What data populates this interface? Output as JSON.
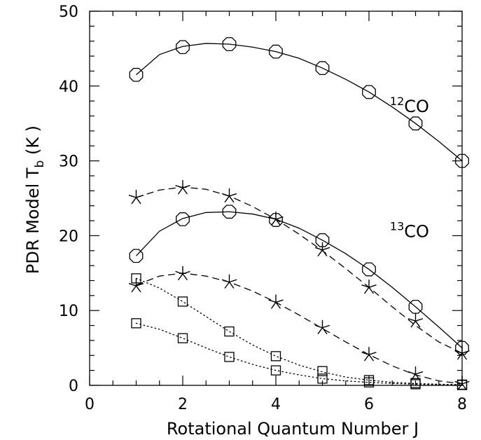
{
  "chart_data": {
    "type": "line",
    "title": "",
    "xlabel": "Rotational Quantum Number J",
    "ylabel": {
      "main": "PDR Model T",
      "sub": "b",
      "unit": " (K )"
    },
    "xlim": [
      0,
      8
    ],
    "ylim": [
      0,
      50
    ],
    "x_ticks": [
      "0",
      "2",
      "4",
      "6",
      "8"
    ],
    "y_ticks": [
      "0",
      "10",
      "20",
      "30",
      "40",
      "50"
    ],
    "grid": false,
    "series": [
      {
        "marker": "octagon",
        "line": "solid",
        "x": [
          1,
          2,
          3,
          4,
          5,
          6,
          7,
          8
        ],
        "values": [
          41.5,
          45.2,
          45.6,
          44.6,
          42.4,
          39.2,
          35.0,
          30.0
        ],
        "curve": [
          [
            1,
            41.5
          ],
          [
            1.5,
            44.2
          ],
          [
            2,
            45.3
          ],
          [
            2.5,
            45.7
          ],
          [
            3,
            45.6
          ],
          [
            3.5,
            45.2
          ],
          [
            4,
            44.6
          ],
          [
            4.5,
            43.7
          ],
          [
            5,
            42.4
          ],
          [
            5.5,
            40.9
          ],
          [
            6,
            39.2
          ],
          [
            6.5,
            37.2
          ],
          [
            7,
            35.0
          ],
          [
            7.5,
            32.6
          ],
          [
            8,
            30.0
          ]
        ]
      },
      {
        "marker": "asterisk",
        "line": "dashed",
        "x": [
          1,
          2,
          3,
          4,
          5,
          6,
          7,
          8
        ],
        "values": [
          25.1,
          26.4,
          25.3,
          22.2,
          18.1,
          13.1,
          8.6,
          4.3
        ],
        "curve": [
          [
            1,
            25.1
          ],
          [
            1.5,
            26.1
          ],
          [
            2,
            26.5
          ],
          [
            2.5,
            26.2
          ],
          [
            3,
            25.3
          ],
          [
            3.5,
            23.9
          ],
          [
            4,
            22.2
          ],
          [
            4.5,
            20.2
          ],
          [
            5,
            18.0
          ],
          [
            5.5,
            15.6
          ],
          [
            6,
            13.1
          ],
          [
            6.5,
            10.5
          ],
          [
            7,
            8.0
          ],
          [
            7.5,
            5.8
          ],
          [
            8,
            4.3
          ]
        ]
      },
      {
        "marker": "octagon",
        "line": "solid",
        "x": [
          1,
          2,
          3,
          4,
          5,
          6,
          7,
          8
        ],
        "values": [
          17.3,
          22.2,
          23.2,
          22.1,
          19.4,
          15.5,
          10.5,
          5.0
        ],
        "curve": [
          [
            1,
            17.3
          ],
          [
            1.5,
            20.6
          ],
          [
            2,
            22.3
          ],
          [
            2.5,
            23.1
          ],
          [
            3,
            23.2
          ],
          [
            3.5,
            22.9
          ],
          [
            4,
            22.2
          ],
          [
            4.5,
            21.0
          ],
          [
            5,
            19.4
          ],
          [
            5.5,
            17.6
          ],
          [
            6,
            15.5
          ],
          [
            6.5,
            13.1
          ],
          [
            7,
            10.5
          ],
          [
            7.5,
            7.8
          ],
          [
            8,
            5.0
          ]
        ]
      },
      {
        "marker": "asterisk",
        "line": "dashed",
        "x": [
          1,
          2,
          3,
          4,
          5,
          6,
          7,
          8
        ],
        "values": [
          13.3,
          14.9,
          13.8,
          11.1,
          7.7,
          4.1,
          1.5,
          0.2
        ],
        "curve": [
          [
            1,
            13.4
          ],
          [
            1.5,
            14.6
          ],
          [
            2,
            15.0
          ],
          [
            2.5,
            14.6
          ],
          [
            3,
            13.8
          ],
          [
            3.5,
            12.6
          ],
          [
            4,
            11.1
          ],
          [
            4.5,
            9.4
          ],
          [
            5,
            7.6
          ],
          [
            5.5,
            5.8
          ],
          [
            6,
            4.1
          ],
          [
            6.5,
            2.6
          ],
          [
            7,
            1.4
          ],
          [
            7.5,
            0.6
          ],
          [
            8,
            0.2
          ]
        ]
      },
      {
        "marker": "square",
        "line": "dotted",
        "x": [
          1,
          2,
          3,
          4,
          5,
          6,
          7,
          8
        ],
        "values": [
          14.3,
          11.2,
          7.2,
          3.9,
          1.9,
          0.7,
          0.3,
          0.1
        ],
        "curve": [
          [
            1,
            14.3
          ],
          [
            1.5,
            13.0
          ],
          [
            2,
            11.2
          ],
          [
            2.5,
            9.2
          ],
          [
            3,
            7.2
          ],
          [
            3.5,
            5.4
          ],
          [
            4,
            3.9
          ],
          [
            4.5,
            2.7
          ],
          [
            5,
            1.8
          ],
          [
            5.5,
            1.1
          ],
          [
            6,
            0.7
          ],
          [
            6.5,
            0.4
          ],
          [
            7,
            0.25
          ],
          [
            7.5,
            0.15
          ],
          [
            8,
            0.1
          ]
        ]
      },
      {
        "marker": "square",
        "line": "dotted",
        "x": [
          1,
          2,
          3,
          4,
          5,
          6,
          7,
          8
        ],
        "values": [
          8.3,
          6.3,
          3.8,
          2.0,
          0.9,
          0.4,
          0.15,
          0.05
        ],
        "curve": [
          [
            1,
            8.3
          ],
          [
            1.5,
            7.5
          ],
          [
            2,
            6.3
          ],
          [
            2.5,
            5.0
          ],
          [
            3,
            3.8
          ],
          [
            3.5,
            2.8
          ],
          [
            4,
            2.0
          ],
          [
            4.5,
            1.4
          ],
          [
            5,
            0.9
          ],
          [
            5.5,
            0.6
          ],
          [
            6,
            0.4
          ],
          [
            6.5,
            0.25
          ],
          [
            7,
            0.15
          ],
          [
            7.5,
            0.08
          ],
          [
            8,
            0.05
          ]
        ]
      }
    ],
    "annotations": [
      {
        "sup": "12",
        "text": "CO",
        "x": 6.45,
        "y": 36.5
      },
      {
        "sup": "13",
        "text": "CO",
        "x": 6.45,
        "y": 19.8
      }
    ]
  }
}
